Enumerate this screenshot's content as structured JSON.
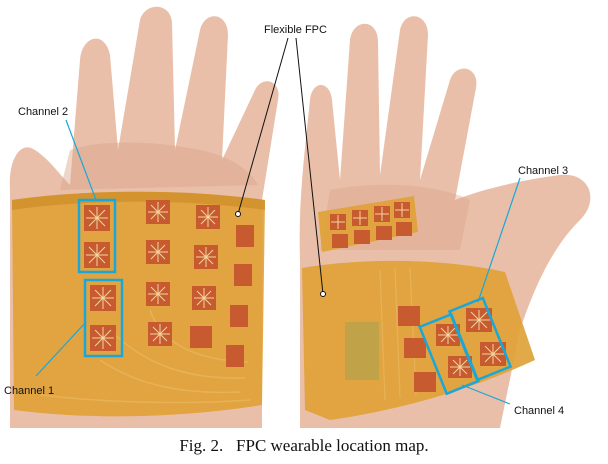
{
  "figure": {
    "callouts": {
      "flexible_fpc": "Flexible FPC",
      "channel_1": "Channel 1",
      "channel_2": "Channel 2",
      "channel_3": "Channel 3",
      "channel_4": "Channel 4"
    },
    "colors": {
      "skin": "#e9bfa9",
      "skin_shadow": "#d9a488",
      "fpc_film": "#e0a238",
      "fpc_dark": "#c98a25",
      "electrode": "#c85a2f",
      "trace": "#e8b45a",
      "channel_box": "#1aa7d8",
      "leader_line": "#111111"
    }
  },
  "caption": {
    "fig_label": "Fig. 2.",
    "text": "FPC wearable location map."
  }
}
